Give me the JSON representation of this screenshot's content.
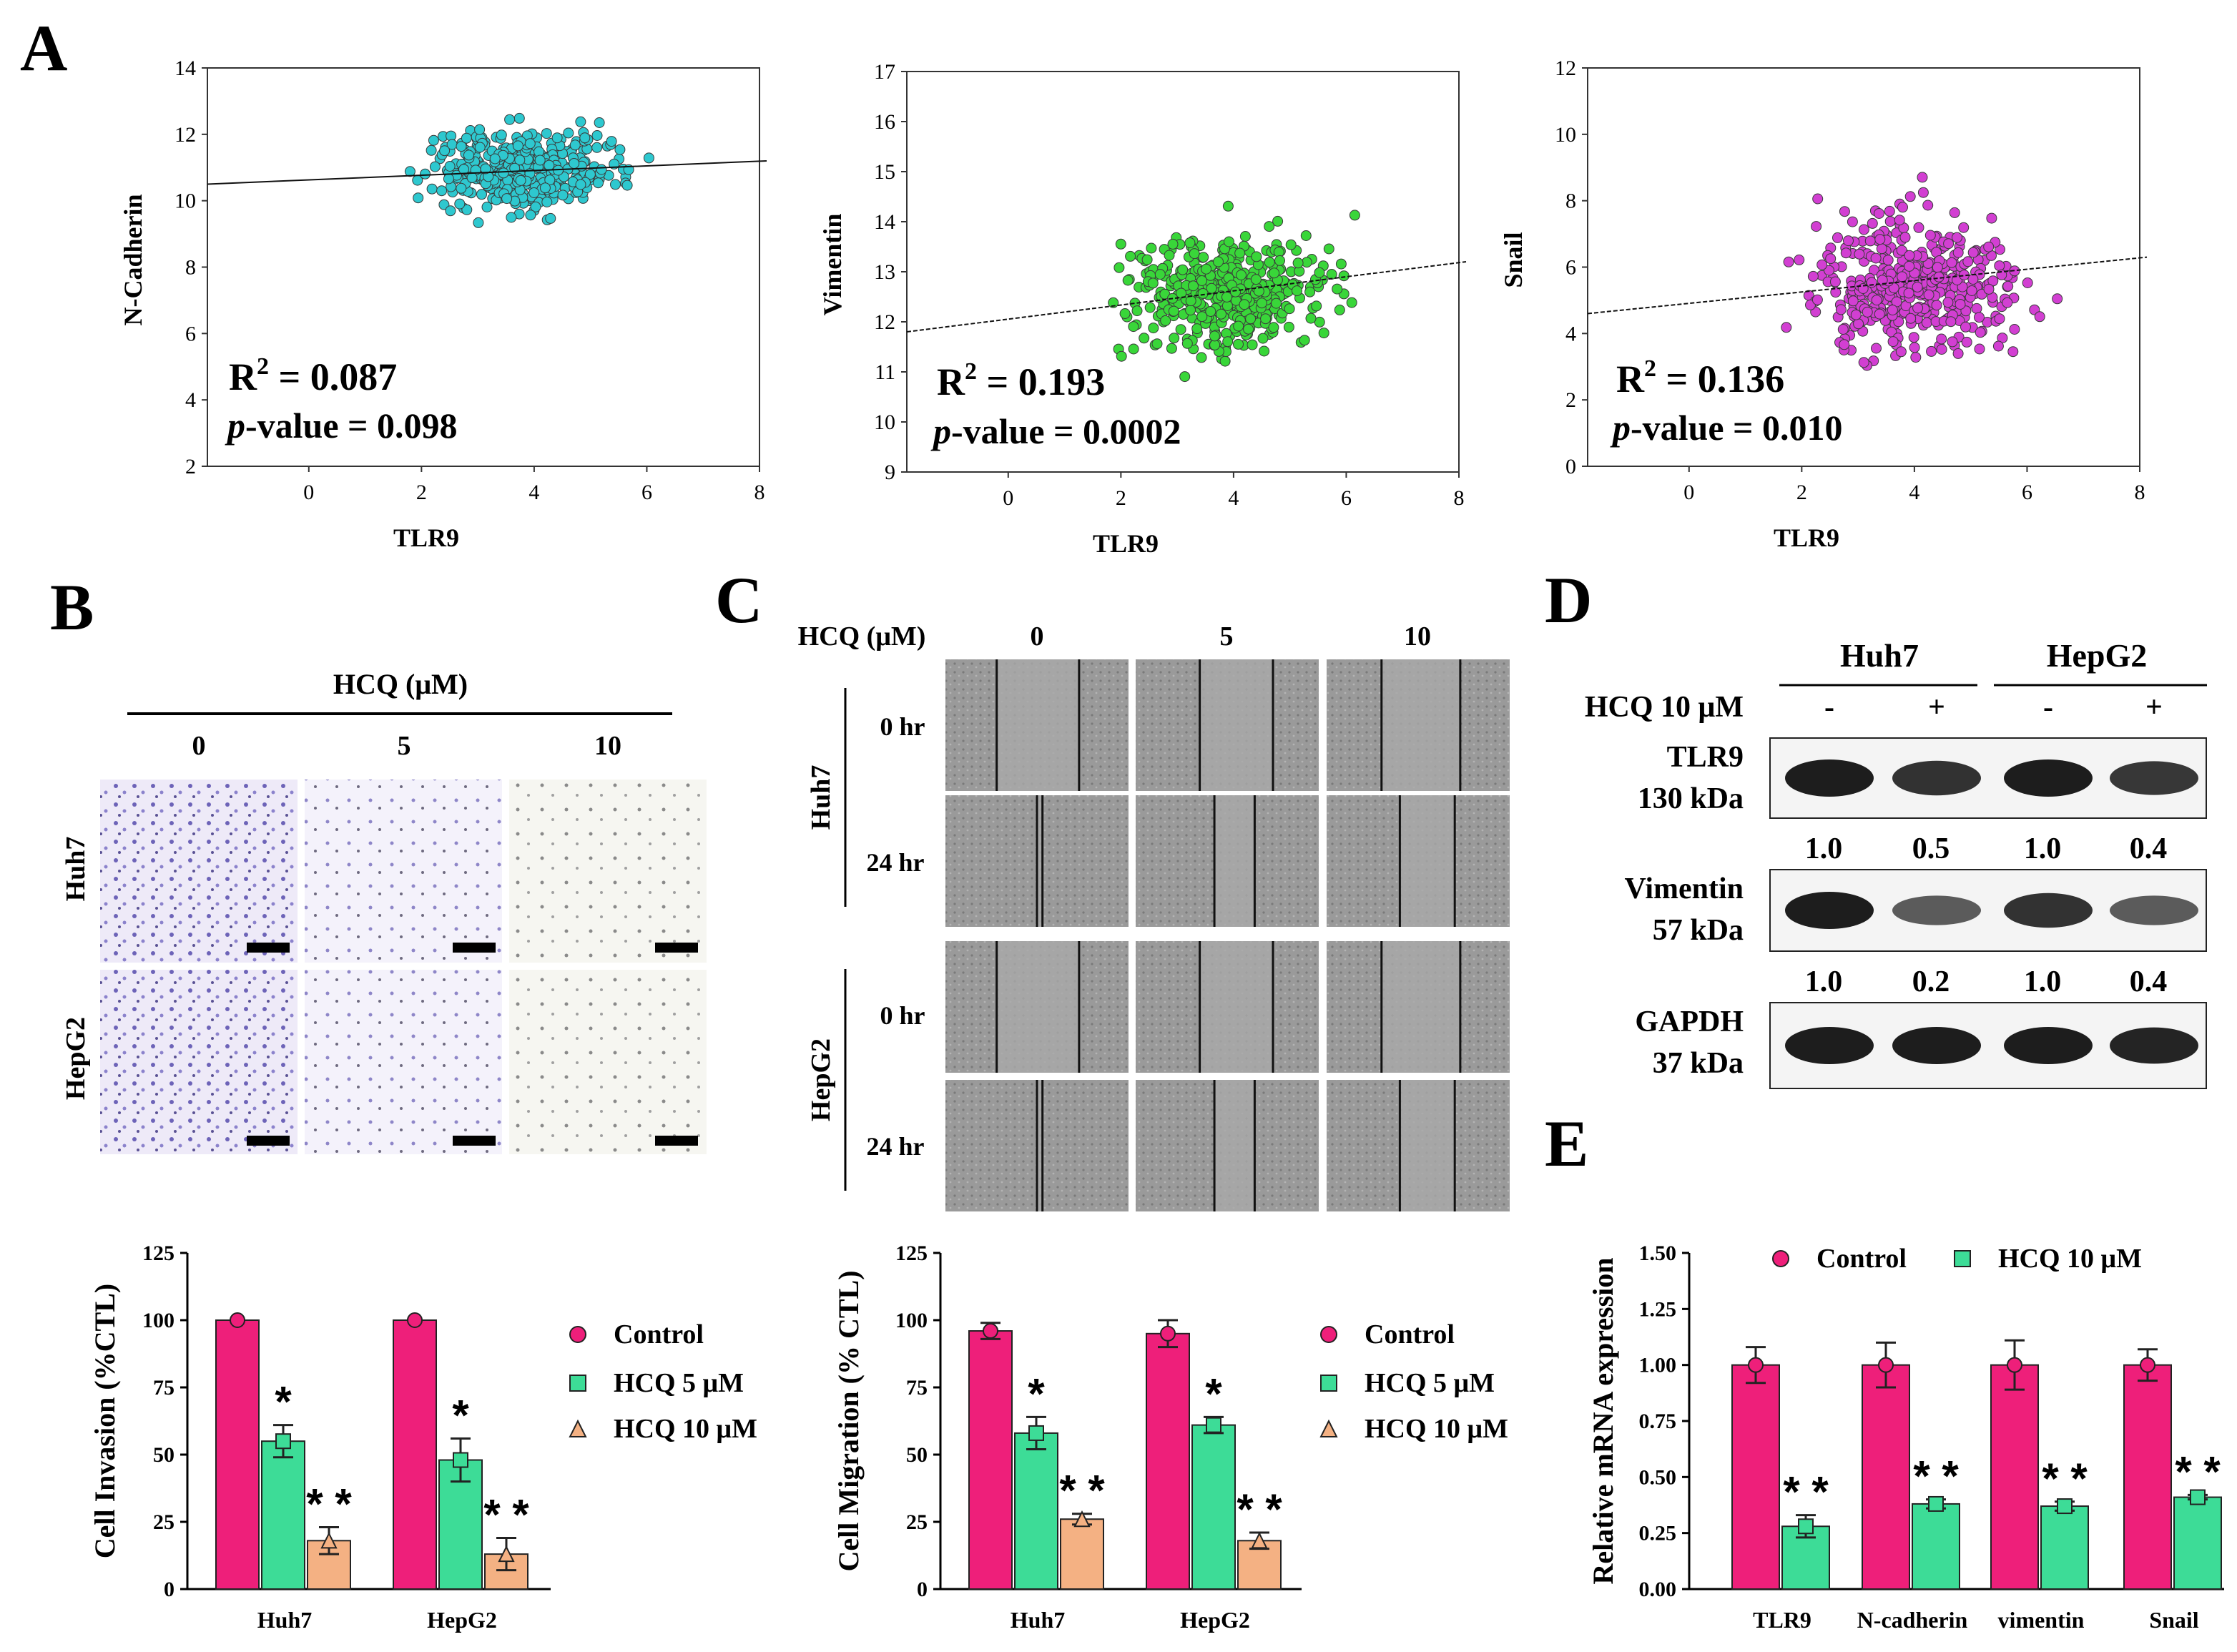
{
  "panel_labels": {
    "a": "A",
    "b": "B",
    "c": "C",
    "d": "D",
    "e": "E"
  },
  "colors": {
    "control": "#ee1f7a",
    "hcq5": "#3ddc97",
    "hcq10": "#f4b183",
    "cyan": "#2ec8cf",
    "green": "#39d639",
    "magenta": "#d23fd2"
  },
  "panelA": [
    {
      "ylabel": "N-Cadherin",
      "xlabel": "TLR9",
      "r2": "= 0.087",
      "pval": "= 0.098",
      "r2_label": "R",
      "pval_label": "p",
      "pval_suffix": "-value",
      "xticks": [
        "0",
        "2",
        "4",
        "6",
        "8"
      ],
      "yticks": [
        "2",
        "4",
        "6",
        "8",
        "10",
        "12",
        "14"
      ]
    },
    {
      "ylabel": "Vimentin",
      "xlabel": "TLR9",
      "r2": "= 0.193",
      "pval": "= 0.0002",
      "r2_label": "R",
      "pval_label": "p",
      "pval_suffix": "-value",
      "xticks": [
        "0",
        "2",
        "4",
        "6",
        "8"
      ],
      "yticks": [
        "9",
        "10",
        "11",
        "12",
        "13",
        "14",
        "15",
        "16",
        "17"
      ]
    },
    {
      "ylabel": "Snail",
      "xlabel": "TLR9",
      "r2": "= 0.136",
      "pval": "= 0.010",
      "r2_label": "R",
      "pval_label": "p",
      "pval_suffix": "-value",
      "xticks": [
        "0",
        "2",
        "4",
        "6",
        "8"
      ],
      "yticks": [
        "0",
        "2",
        "4",
        "6",
        "8",
        "10",
        "12"
      ]
    }
  ],
  "panelB": {
    "header": "HCQ (μM)",
    "doses": [
      "0",
      "5",
      "10"
    ],
    "rows": [
      "Huh7",
      "HepG2"
    ]
  },
  "panelC": {
    "header": "HCQ (μM)",
    "doses": [
      "0",
      "5",
      "10"
    ],
    "groups": [
      "Huh7",
      "HepG2"
    ],
    "times": [
      "0 hr",
      "24 hr"
    ]
  },
  "panelD": {
    "groups": [
      "Huh7",
      "HepG2"
    ],
    "treatment_label": "HCQ 10 μM",
    "signs": [
      "-",
      "+",
      "-",
      "+"
    ],
    "bands": [
      {
        "name": "TLR9",
        "size": "130 kDa",
        "values": [
          "1.0",
          "0.5",
          "1.0",
          "0.4"
        ]
      },
      {
        "name": "Vimentin",
        "size": "57 kDa",
        "values": [
          "1.0",
          "0.2",
          "1.0",
          "0.4"
        ]
      },
      {
        "name": "GAPDH",
        "size": "37 kDa",
        "values": []
      }
    ]
  },
  "chart_data": [
    {
      "id": "invasion",
      "type": "bar",
      "ylabel": "Cell Invasion (%CTL)",
      "ylim": [
        0,
        125
      ],
      "yticks": [
        "0",
        "25",
        "50",
        "75",
        "100",
        "125"
      ],
      "categories": [
        "Huh7",
        "HepG2"
      ],
      "series": [
        {
          "name": "Control",
          "values": [
            100,
            100
          ],
          "errors": [
            0,
            0
          ]
        },
        {
          "name": "HCQ 5 μM",
          "values": [
            55,
            48
          ],
          "errors": [
            6,
            8
          ]
        },
        {
          "name": "HCQ 10 μM",
          "values": [
            18,
            13
          ],
          "errors": [
            5,
            6
          ]
        }
      ],
      "annotations": [
        [
          "",
          "*",
          "* *"
        ],
        [
          "",
          "*",
          "* *"
        ]
      ],
      "legend": [
        "Control",
        "HCQ 5 μM",
        "HCQ 10 μM"
      ]
    },
    {
      "id": "migration",
      "type": "bar",
      "ylabel": "Cell Migration (% CTL)",
      "ylim": [
        0,
        125
      ],
      "yticks": [
        "0",
        "25",
        "50",
        "75",
        "100",
        "125"
      ],
      "categories": [
        "Huh7",
        "HepG2"
      ],
      "series": [
        {
          "name": "Control",
          "values": [
            96,
            95
          ],
          "errors": [
            3,
            5
          ]
        },
        {
          "name": "HCQ 5 μM",
          "values": [
            58,
            61
          ],
          "errors": [
            6,
            3
          ]
        },
        {
          "name": "HCQ 10 μM",
          "values": [
            26,
            18
          ],
          "errors": [
            2,
            3
          ]
        }
      ],
      "annotations": [
        [
          "",
          "*",
          "* *"
        ],
        [
          "",
          "*",
          "* *"
        ]
      ],
      "legend": [
        "Control",
        "HCQ 5 μM",
        "HCQ 10 μM"
      ]
    },
    {
      "id": "mrna",
      "type": "bar",
      "ylabel": "Relative mRNA expression",
      "ylim": [
        0,
        1.5
      ],
      "yticks": [
        "0.00",
        "0.25",
        "0.50",
        "0.75",
        "1.00",
        "1.25",
        "1.50"
      ],
      "categories": [
        "TLR9",
        "N-cadherin",
        "vimentin",
        "Snail"
      ],
      "series": [
        {
          "name": "Control",
          "values": [
            1.0,
            1.0,
            1.0,
            1.0
          ],
          "errors": [
            0.08,
            0.1,
            0.11,
            0.07
          ]
        },
        {
          "name": "HCQ 10 μM",
          "values": [
            0.28,
            0.38,
            0.37,
            0.41
          ],
          "errors": [
            0.05,
            0.02,
            0.02,
            0.01
          ]
        }
      ],
      "annotations": [
        [
          "",
          "* *"
        ],
        [
          "",
          "* *"
        ],
        [
          "",
          "* *"
        ],
        [
          "",
          "* *"
        ]
      ],
      "legend": [
        "Control",
        "HCQ 10 μM"
      ]
    }
  ]
}
